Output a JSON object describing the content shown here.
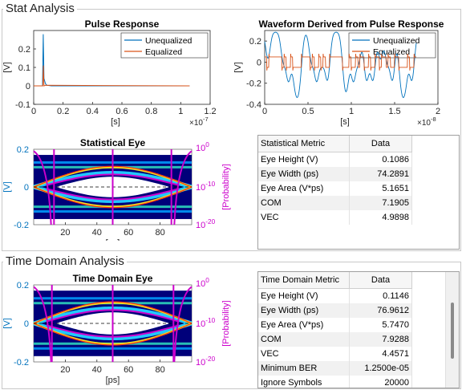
{
  "panels": {
    "stat": "Stat Analysis",
    "time": "Time Domain Analysis"
  },
  "colors": {
    "unequalized": "#0072bd",
    "equalized": "#d95319",
    "probability_axis": "#cc00cc",
    "eye_axis": "#0072bd"
  },
  "chart_data": [
    {
      "type": "line",
      "title": "Pulse Response",
      "xlabel": "[s]",
      "ylabel": "[V]",
      "x_multiplier": "×10^-7",
      "xlim": [
        0,
        1.2
      ],
      "ylim": [
        -0.1,
        0.3
      ],
      "xticks": [
        "0",
        "0.2",
        "0.4",
        "0.6",
        "0.8",
        "1",
        "1.2"
      ],
      "yticks": [
        "-0.1",
        "0",
        "0.1",
        "0.2"
      ],
      "legend": "top-right",
      "series": [
        {
          "name": "Unequalized",
          "x": [
            0,
            0.06,
            0.065,
            0.07,
            0.08,
            0.09,
            0.12,
            1.06
          ],
          "y": [
            0,
            0,
            0.28,
            0.04,
            0.012,
            0.003,
            0,
            0
          ]
        },
        {
          "name": "Equalized",
          "x": [
            0,
            0.062,
            0.066,
            0.07,
            0.08,
            1.06
          ],
          "y": [
            0,
            0,
            0.11,
            0,
            0.003,
            0
          ]
        }
      ]
    },
    {
      "type": "line",
      "title": "Waveform Derived from Pulse Response",
      "xlabel": "[s]",
      "ylabel": "[V]",
      "x_multiplier": "×10^-8",
      "xlim": [
        0,
        2
      ],
      "ylim": [
        -0.4,
        0.3
      ],
      "xticks": [
        "0",
        "0.5",
        "1",
        "1.5",
        "2"
      ],
      "yticks": [
        "-0.4",
        "-0.2",
        "0",
        "0.2"
      ],
      "legend": "top-right",
      "series": [
        {
          "name": "Unequalized",
          "x_range": [
            0,
            1.75
          ],
          "amplitude": 0.25,
          "floor": -0.32
        },
        {
          "name": "Equalized",
          "x_range": [
            0,
            1.75
          ],
          "amplitude": 0.055,
          "floor": -0.06
        }
      ]
    },
    {
      "type": "heatmap",
      "title": "Statistical Eye",
      "xlabel": "[ps]",
      "ylabel": "[V]",
      "y2label": "[Probability]",
      "xlim": [
        0,
        100
      ],
      "ylim": [
        -0.2,
        0.2
      ],
      "xticks": [
        "20",
        "40",
        "60",
        "80"
      ],
      "yticks": [
        "-0.2",
        "0",
        "0.2"
      ],
      "y2ticks": [
        "10^0",
        "10^-10",
        "10^-20"
      ],
      "eye_height": 0.1086,
      "eye_width_ps": 74.2891
    },
    {
      "type": "heatmap",
      "title": "Time Domain Eye",
      "xlabel": "[ps]",
      "ylabel": "[V]",
      "y2label": "[Probability]",
      "xlim": [
        0,
        100
      ],
      "ylim": [
        -0.2,
        0.2
      ],
      "xticks": [
        "20",
        "40",
        "60",
        "80"
      ],
      "yticks": [
        "-0.2",
        "0",
        "0.2"
      ],
      "y2ticks": [
        "10^0",
        "10^-10",
        "10^-20"
      ],
      "eye_height": 0.1146,
      "eye_width_ps": 76.9612
    }
  ],
  "stat_table": {
    "headers": [
      "Statistical Metric",
      "Data"
    ],
    "rows": [
      [
        "Eye Height (V)",
        "0.1086"
      ],
      [
        "Eye Width (ps)",
        "74.2891"
      ],
      [
        "Eye Area (V*ps)",
        "5.1651"
      ],
      [
        "COM",
        "7.1905"
      ],
      [
        "VEC",
        "4.9898"
      ]
    ]
  },
  "time_table": {
    "headers": [
      "Time Domain Metric",
      "Data"
    ],
    "rows": [
      [
        "Eye Height (V)",
        "0.1146"
      ],
      [
        "Eye Width (ps)",
        "76.9612"
      ],
      [
        "Eye Area (V*ps)",
        "5.7470"
      ],
      [
        "COM",
        "7.9288"
      ],
      [
        "VEC",
        "4.4571"
      ],
      [
        "Minimum BER",
        "1.2500e-05"
      ],
      [
        "Ignore Symbols",
        "20000"
      ]
    ]
  }
}
